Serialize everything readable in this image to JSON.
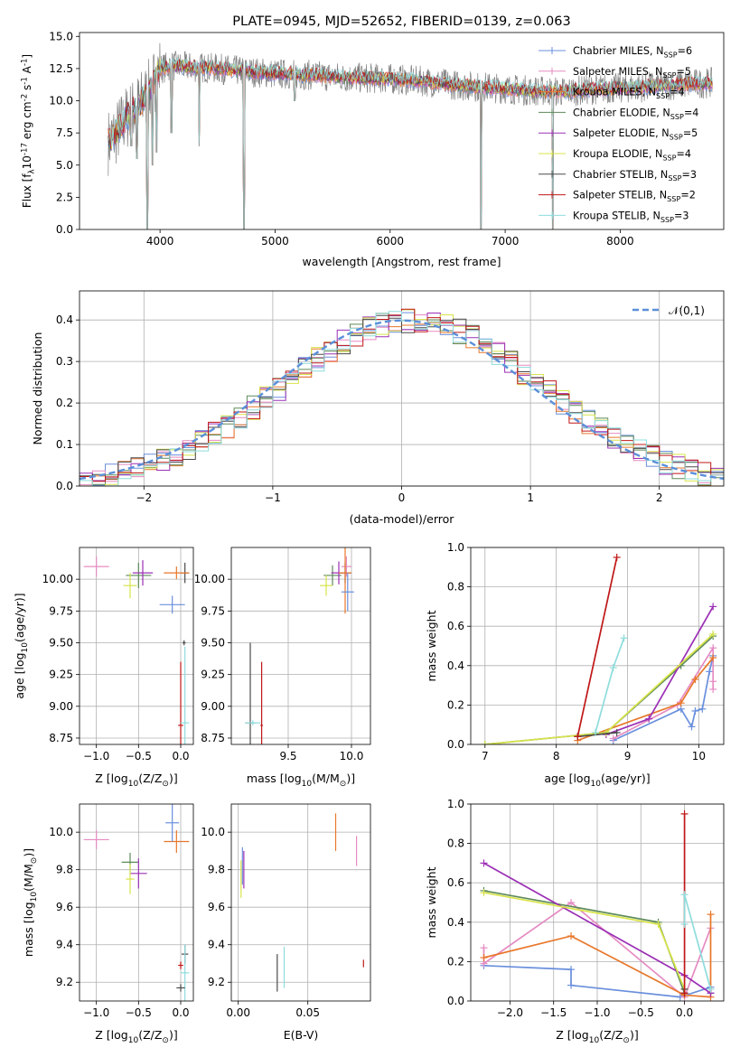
{
  "chart_data": [
    {
      "type": "line",
      "title": "PLATE=0945, MJD=52652, FIBERID=0139, z=0.063",
      "xlabel": "wavelength [Angstrom, rest frame]",
      "ylabel": "Flux [f$_\\lambda$10$^{-17}$ erg cm$^{-2}$ s$^{-1}$ A$^{-1}$]",
      "xlim": [
        3300,
        8900
      ],
      "ylim": [
        0,
        15.3
      ],
      "xticks": [
        "4000",
        "5000",
        "6000",
        "7000",
        "8000"
      ],
      "yticks": [
        "0.0",
        "2.5",
        "5.0",
        "7.5",
        "10.0",
        "12.5",
        "15.0"
      ],
      "grid": false,
      "legend_position": "top-right",
      "series": [
        {
          "name": "Chabrier MILES, N$_{SSP}$=6",
          "color": "#6a8fdc"
        },
        {
          "name": "Salpeter MILES, N$_{SSP}$=5",
          "color": "#e58bc2"
        },
        {
          "name": "Kroupa MILES, N$_{SSP}$=4",
          "color": "#e8772b"
        },
        {
          "name": "Chabrier ELODIE, N$_{SSP}$=4",
          "color": "#5e8a5a"
        },
        {
          "name": "Salpeter ELODIE, N$_{SSP}$=5",
          "color": "#9b30b5"
        },
        {
          "name": "Kroupa ELODIE, N$_{SSP}$=4",
          "color": "#d8e44a"
        },
        {
          "name": "Chabrier STELIB, N$_{SSP}$=3",
          "color": "#4a4a4a"
        },
        {
          "name": "Salpeter STELIB, N$_{SSP}$=2",
          "color": "#c01818"
        },
        {
          "name": "Kroupa STELIB, N$_{SSP}$=3",
          "color": "#8fdcdc"
        }
      ],
      "data_color": "#808080",
      "continuum": {
        "x": [
          3550,
          3620,
          3700,
          3800,
          3900,
          4000,
          4100,
          4300,
          4500,
          4700,
          5000,
          5300,
          5600,
          6000,
          6300,
          6600,
          6900,
          7200,
          7500,
          7800,
          8100,
          8400,
          8800
        ],
        "y": [
          6.8,
          7.5,
          8.6,
          9.5,
          10.6,
          12.5,
          12.7,
          12.6,
          12.5,
          12.3,
          12.1,
          12.0,
          11.8,
          11.7,
          11.5,
          11.2,
          11.0,
          10.8,
          10.7,
          10.9,
          11.0,
          11.2,
          11.4
        ]
      },
      "dips": [
        {
          "x": 3890,
          "y": 0.0
        },
        {
          "x": 4730,
          "y": 0.0
        },
        {
          "x": 6790,
          "y": 0.0
        },
        {
          "x": 7415,
          "y": 0.0
        },
        {
          "x": 3935,
          "y": 5.0
        },
        {
          "x": 3970,
          "y": 6.0
        },
        {
          "x": 4100,
          "y": 7.5
        },
        {
          "x": 4340,
          "y": 6.5
        },
        {
          "x": 3800,
          "y": 5.5
        },
        {
          "x": 3750,
          "y": 6.5
        },
        {
          "x": 5170,
          "y": 10.0
        }
      ]
    },
    {
      "type": "line",
      "xlabel": "(data-model)/error",
      "ylabel": "Normed distribution",
      "xlim": [
        -2.5,
        2.5
      ],
      "ylim": [
        0,
        0.47
      ],
      "xticks": [
        "−2",
        "−1",
        "0",
        "1",
        "2"
      ],
      "yticks": [
        "0.0",
        "0.1",
        "0.2",
        "0.3",
        "0.4"
      ],
      "grid": true,
      "legend_position": "top-right",
      "reference": {
        "name": "$\\mathcal{N}(0,1)$",
        "color": "#5b8fd8",
        "style": "dashed"
      },
      "hist_bin_width": 0.1,
      "hist_range": [
        -2.5,
        2.5
      ]
    },
    {
      "type": "scatter",
      "xlabel": "Z [log$_{10}$($Z/Z_\\odot$)]",
      "ylabel": "age  [log$_{10}$($age/yr$)]",
      "xlim": [
        -1.2,
        0.15
      ],
      "ylim": [
        8.7,
        10.25
      ],
      "xticks": [
        "−1.0",
        "−0.5",
        "0.0"
      ],
      "yticks": [
        "8.75",
        "9.00",
        "9.25",
        "9.50",
        "9.75",
        "10.00"
      ],
      "grid": true,
      "crosses": [
        {
          "x": 0.05,
          "y": 10.05,
          "xerr": 0.05,
          "yerr": 0.08,
          "series": 6
        },
        {
          "x": -0.5,
          "y": 10.03,
          "xerr": 0.15,
          "yerr": 0.1,
          "series": 3
        },
        {
          "x": -1.0,
          "y": 10.1,
          "xerr": 0.15,
          "yerr": 0.08,
          "series": 1
        },
        {
          "x": -0.45,
          "y": 10.05,
          "xerr": 0.12,
          "yerr": 0.1,
          "series": 4
        },
        {
          "x": -0.05,
          "y": 10.05,
          "xerr": 0.15,
          "yerr": 0.05,
          "series": 2
        },
        {
          "x": -0.6,
          "y": 9.95,
          "xerr": 0.08,
          "yerr": 0.1,
          "series": 5
        },
        {
          "x": -0.1,
          "y": 9.8,
          "xerr": 0.15,
          "yerr": 0.07,
          "series": 0
        },
        {
          "x": 0.0,
          "y": 8.85,
          "xerr": 0.03,
          "yerr": 0.5,
          "series": 7
        },
        {
          "x": 0.05,
          "y": 8.87,
          "xerr": 0.05,
          "yerr": 0.6,
          "series": 8
        },
        {
          "x": 0.04,
          "y": 9.5,
          "xerr": 0.02,
          "yerr": 0.02,
          "series": 6
        }
      ]
    },
    {
      "type": "scatter",
      "xlabel": "mass [log$_{10}$($M/M_\\odot$)]",
      "xlim": [
        9.05,
        10.15
      ],
      "ylim": [
        8.7,
        10.25
      ],
      "xticks": [
        "9.5",
        "10.0"
      ],
      "yticks": [
        "8.75",
        "9.00",
        "9.25",
        "9.50",
        "9.75",
        "10.00"
      ],
      "grid": true,
      "crosses": [
        {
          "x": 9.95,
          "y": 10.05,
          "xerr": 0.05,
          "yerr": 0.08,
          "series": 6
        },
        {
          "x": 9.85,
          "y": 10.03,
          "xerr": 0.07,
          "yerr": 0.08,
          "series": 3
        },
        {
          "x": 9.96,
          "y": 10.1,
          "xerr": 0.04,
          "yerr": 0.08,
          "series": 1
        },
        {
          "x": 9.9,
          "y": 10.05,
          "xerr": 0.06,
          "yerr": 0.09,
          "series": 4
        },
        {
          "x": 9.95,
          "y": 10.05,
          "xerr": 0.05,
          "yerr": 0.32,
          "series": 2
        },
        {
          "x": 9.8,
          "y": 9.95,
          "xerr": 0.05,
          "yerr": 0.08,
          "series": 5
        },
        {
          "x": 9.97,
          "y": 9.9,
          "xerr": 0.05,
          "yerr": 0.15,
          "series": 0
        },
        {
          "x": 9.29,
          "y": 8.85,
          "xerr": 0.01,
          "yerr": 0.5,
          "series": 7
        },
        {
          "x": 9.2,
          "y": 8.87,
          "xerr": 0.04,
          "yerr": 0.63,
          "series": 6
        },
        {
          "x": 9.22,
          "y": 8.87,
          "xerr": 0.06,
          "yerr": 0.02,
          "series": 8
        }
      ]
    },
    {
      "type": "line",
      "xlabel": "age  [log$_{10}$($age/yr$)]",
      "ylabel": "mass weight",
      "xlim": [
        6.8,
        10.35
      ],
      "ylim": [
        0,
        1.0
      ],
      "xticks": [
        "7",
        "8",
        "9",
        "10"
      ],
      "yticks": [
        "0.0",
        "0.2",
        "0.4",
        "0.6",
        "0.8",
        "1.0"
      ],
      "grid": true,
      "series": [
        {
          "series": 0,
          "x": [
            8.8,
            9.75,
            9.9,
            9.95,
            10.05,
            10.15,
            10.2
          ],
          "y": [
            0.02,
            0.18,
            0.09,
            0.17,
            0.18,
            0.37,
            0.45
          ]
        },
        {
          "series": 1,
          "x": [
            8.8,
            9.7,
            10.2,
            10.2,
            10.2
          ],
          "y": [
            0.03,
            0.2,
            0.49,
            0.32,
            0.28
          ]
        },
        {
          "series": 2,
          "x": [
            8.3,
            9.75,
            9.95,
            10.2
          ],
          "y": [
            0.02,
            0.21,
            0.33,
            0.44
          ]
        },
        {
          "series": 3,
          "x": [
            7.0,
            8.7,
            9.75,
            10.2
          ],
          "y": [
            0.0,
            0.06,
            0.4,
            0.55
          ]
        },
        {
          "series": 4,
          "x": [
            8.7,
            9.3,
            10.2
          ],
          "y": [
            0.05,
            0.13,
            0.7
          ]
        },
        {
          "series": 5,
          "x": [
            7.0,
            8.7,
            10.2
          ],
          "y": [
            0.0,
            0.06,
            0.56
          ]
        },
        {
          "series": 6,
          "x": [
            8.3,
            8.85
          ],
          "y": [
            0.04,
            0.06
          ]
        },
        {
          "series": 7,
          "x": [
            8.3,
            8.85
          ],
          "y": [
            0.04,
            0.95
          ]
        },
        {
          "series": 8,
          "x": [
            8.55,
            8.8,
            8.95
          ],
          "y": [
            0.06,
            0.39,
            0.54
          ]
        }
      ]
    },
    {
      "type": "scatter",
      "xlabel": "Z [log$_{10}$($Z/Z_\\odot$)]",
      "ylabel": "mass [log$_{10}$($M/M_\\odot$)]",
      "xlim": [
        -1.2,
        0.15
      ],
      "ylim": [
        9.1,
        10.15
      ],
      "xticks": [
        "−1.0",
        "−0.5",
        "0.0"
      ],
      "yticks": [
        "9.2",
        "9.4",
        "9.6",
        "9.8",
        "10.0"
      ],
      "grid": true,
      "crosses": [
        {
          "x": -1.0,
          "y": 9.96,
          "xerr": 0.15,
          "yerr": 0.05,
          "series": 1
        },
        {
          "x": -0.05,
          "y": 9.95,
          "xerr": 0.15,
          "yerr": 0.06,
          "series": 2
        },
        {
          "x": -0.1,
          "y": 10.05,
          "xerr": 0.08,
          "yerr": 0.1,
          "series": 0
        },
        {
          "x": -0.6,
          "y": 9.84,
          "xerr": 0.1,
          "yerr": 0.05,
          "series": 3
        },
        {
          "x": -0.5,
          "y": 9.78,
          "xerr": 0.1,
          "yerr": 0.08,
          "series": 4
        },
        {
          "x": -0.6,
          "y": 9.75,
          "xerr": 0.05,
          "yerr": 0.08,
          "series": 5
        },
        {
          "x": 0.05,
          "y": 9.35,
          "xerr": 0.04,
          "yerr": 0.05,
          "series": 6
        },
        {
          "x": 0.0,
          "y": 9.29,
          "xerr": 0.03,
          "yerr": 0.02,
          "series": 7
        },
        {
          "x": 0.05,
          "y": 9.25,
          "xerr": 0.05,
          "yerr": 0.15,
          "series": 8
        },
        {
          "x": 0.0,
          "y": 9.17,
          "xerr": 0.05,
          "yerr": 0.02,
          "series": 6
        }
      ]
    },
    {
      "type": "scatter",
      "xlabel": "E(B-V)",
      "xlim": [
        -0.005,
        0.095
      ],
      "ylim": [
        9.1,
        10.15
      ],
      "xticks": [
        "0.00",
        "0.05"
      ],
      "yticks": [
        "9.2",
        "9.4",
        "9.6",
        "9.8",
        "10.0"
      ],
      "grid": true,
      "crosses": [
        {
          "x": 0.07,
          "y": 10.0,
          "xerr": 0.0,
          "yerr": 0.1,
          "series": 2
        },
        {
          "x": 0.085,
          "y": 9.9,
          "xerr": 0.0,
          "yerr": 0.08,
          "series": 1
        },
        {
          "x": 0.003,
          "y": 9.82,
          "xerr": 0.0,
          "yerr": 0.1,
          "series": 0
        },
        {
          "x": 0.002,
          "y": 9.75,
          "xerr": 0.0,
          "yerr": 0.1,
          "series": 5
        },
        {
          "x": 0.004,
          "y": 9.8,
          "xerr": 0.0,
          "yerr": 0.1,
          "series": 4
        },
        {
          "x": 0.028,
          "y": 9.25,
          "xerr": 0.0,
          "yerr": 0.1,
          "series": 6
        },
        {
          "x": 0.033,
          "y": 9.28,
          "xerr": 0.0,
          "yerr": 0.11,
          "series": 8
        },
        {
          "x": 0.09,
          "y": 9.3,
          "xerr": 0.0,
          "yerr": 0.02,
          "series": 7
        }
      ]
    },
    {
      "type": "line",
      "xlabel": "Z [log$_{10}$($Z/Z_\\odot$)]",
      "ylabel": "mass weight",
      "xlim": [
        -2.45,
        0.45
      ],
      "ylim": [
        0,
        1.0
      ],
      "xticks": [
        "−2.0",
        "−1.5",
        "−1.0",
        "−0.5",
        "0.0"
      ],
      "yticks": [
        "0.0",
        "0.2",
        "0.4",
        "0.6",
        "0.8",
        "1.0"
      ],
      "grid": true,
      "series": [
        {
          "series": 0,
          "x": [
            -2.3,
            -1.3,
            -1.3,
            -0.05,
            0.3,
            0.3
          ],
          "y": [
            0.18,
            0.16,
            0.08,
            0.02,
            0.07,
            0.04
          ]
        },
        {
          "series": 1,
          "x": [
            -2.3,
            -2.3,
            -1.3,
            0.0,
            0.3
          ],
          "y": [
            0.27,
            0.19,
            0.5,
            0.02,
            0.37
          ]
        },
        {
          "series": 2,
          "x": [
            -2.3,
            -1.3,
            0.0,
            0.3,
            0.3
          ],
          "y": [
            0.22,
            0.33,
            0.03,
            0.02,
            0.44
          ]
        },
        {
          "series": 3,
          "x": [
            -2.3,
            -0.3,
            0.0
          ],
          "y": [
            0.56,
            0.4,
            0.04
          ]
        },
        {
          "series": 4,
          "x": [
            -2.3,
            0.0,
            0.3
          ],
          "y": [
            0.7,
            0.13,
            0.04
          ]
        },
        {
          "series": 5,
          "x": [
            -2.3,
            -0.3,
            0.0
          ],
          "y": [
            0.55,
            0.39,
            0.06
          ]
        },
        {
          "series": 6,
          "x": [
            0.0,
            0.0
          ],
          "y": [
            0.04,
            0.06
          ]
        },
        {
          "series": 7,
          "x": [
            0.0,
            0.0
          ],
          "y": [
            0.04,
            0.95
          ]
        },
        {
          "series": 8,
          "x": [
            0.0,
            0.0,
            0.3
          ],
          "y": [
            0.39,
            0.54,
            0.06
          ]
        }
      ]
    }
  ]
}
